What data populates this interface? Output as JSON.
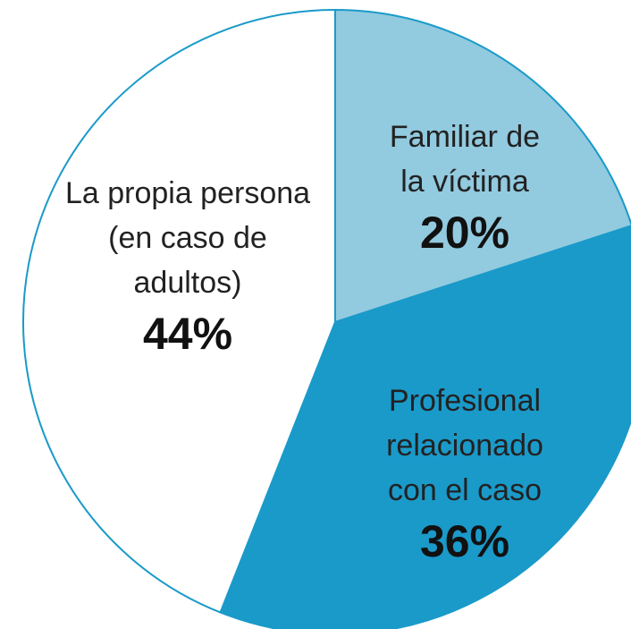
{
  "chart_data": {
    "type": "pie",
    "categories": [
      "Familiar de la víctima",
      "Profesional relacionado con el caso",
      "La propia persona (en caso de adultos)"
    ],
    "values": [
      20,
      36,
      44
    ],
    "value_labels": [
      "20%",
      "36%",
      "44%"
    ],
    "colors": [
      "#92cadf",
      "#1a9ac9",
      "#ffffff"
    ],
    "edge_color": "#1a9ac9"
  }
}
